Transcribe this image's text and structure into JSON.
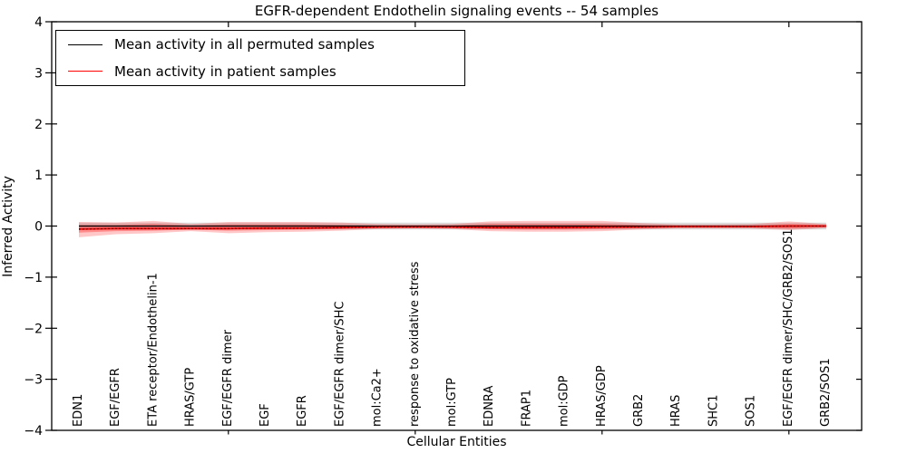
{
  "chart_data": {
    "type": "line",
    "title": "EGFR-dependent Endothelin signaling events -- 54 samples",
    "xlabel": "Cellular Entities",
    "ylabel": "Inferred Activity",
    "ylim": [
      -4,
      4
    ],
    "yticks": [
      -4,
      -3,
      -2,
      -1,
      0,
      1,
      2,
      3,
      4
    ],
    "ytick_labels": [
      "−4",
      "−3",
      "−2",
      "−1",
      "0",
      "1",
      "2",
      "3",
      "4"
    ],
    "grid": false,
    "x_major_tick_indices": [
      4,
      9,
      14,
      19
    ],
    "legend": {
      "position": "upper left",
      "entries": [
        {
          "label": "Mean activity in all permuted samples",
          "color": "#000000"
        },
        {
          "label": "Mean activity in patient samples",
          "color": "#ff0000"
        }
      ]
    },
    "categories": [
      "EDN1",
      "EGF/EGFR",
      "ETA receptor/Endothelin-1",
      "HRAS/GTP",
      "EGF/EGFR dimer",
      "EGF",
      "EGFR",
      "EGF/EGFR dimer/SHC",
      "mol:Ca2+",
      "response to oxidative stress",
      "mol:GTP",
      "EDNRA",
      "FRAP1",
      "mol:GDP",
      "HRAS/GDP",
      "GRB2",
      "HRAS",
      "SHC1",
      "SOS1",
      "EGF/EGFR dimer/SHC/GRB2/SOS1",
      "GRB2/SOS1"
    ],
    "series": [
      {
        "name": "Mean activity in all permuted samples",
        "color": "#000000",
        "style": "solid",
        "width": 1.3,
        "values": [
          0,
          0,
          0,
          0,
          0,
          0,
          0,
          0,
          0,
          0,
          0,
          0,
          0,
          0,
          0,
          0,
          0,
          0,
          0,
          0,
          0
        ]
      },
      {
        "name": "Mean activity in patient samples",
        "color": "#ff0000",
        "style": "solid",
        "width": 1.8,
        "values": [
          -0.06,
          -0.05,
          -0.05,
          -0.05,
          -0.05,
          -0.04,
          -0.04,
          -0.03,
          -0.02,
          -0.02,
          -0.02,
          -0.03,
          -0.03,
          -0.03,
          -0.02,
          -0.02,
          -0.01,
          -0.01,
          -0.01,
          0.0,
          0.0
        ]
      },
      {
        "name": "patient mean dotted overlay",
        "color": "#000000",
        "style": "dotted",
        "width": 1.1,
        "values": [
          -0.06,
          -0.05,
          -0.05,
          -0.05,
          -0.05,
          -0.04,
          -0.04,
          -0.03,
          -0.02,
          -0.02,
          -0.02,
          -0.03,
          -0.03,
          -0.03,
          -0.02,
          -0.02,
          -0.01,
          -0.01,
          -0.01,
          0.0,
          0.0
        ]
      }
    ],
    "bands": [
      {
        "name": "permuted samples spread",
        "color": "#a8a8a8",
        "opacity": 0.4,
        "upper": [
          0.065,
          0.065,
          0.065,
          0.065,
          0.065,
          0.065,
          0.065,
          0.065,
          0.065,
          0.065,
          0.065,
          0.065,
          0.065,
          0.065,
          0.065,
          0.065,
          0.065,
          0.065,
          0.065,
          0.065,
          0.065
        ],
        "lower": [
          -0.065,
          -0.065,
          -0.065,
          -0.065,
          -0.065,
          -0.065,
          -0.065,
          -0.065,
          -0.065,
          -0.065,
          -0.065,
          -0.065,
          -0.065,
          -0.065,
          -0.065,
          -0.065,
          -0.065,
          -0.065,
          -0.065,
          -0.065,
          -0.065
        ]
      },
      {
        "name": "patient samples outer spread",
        "color": "#ff0000",
        "opacity": 0.22,
        "upper": [
          0.08,
          0.07,
          0.1,
          0.04,
          0.08,
          0.08,
          0.08,
          0.07,
          0.04,
          0.03,
          0.04,
          0.09,
          0.1,
          0.1,
          0.1,
          0.06,
          0.03,
          0.03,
          0.04,
          0.09,
          0.04
        ],
        "lower": [
          -0.22,
          -0.16,
          -0.14,
          -0.1,
          -0.14,
          -0.12,
          -0.11,
          -0.09,
          -0.06,
          -0.05,
          -0.06,
          -0.1,
          -0.11,
          -0.11,
          -0.1,
          -0.07,
          -0.05,
          -0.05,
          -0.05,
          -0.08,
          -0.04
        ]
      },
      {
        "name": "patient samples inner spread",
        "color": "#ff0000",
        "opacity": 0.3,
        "upper": [
          0.02,
          0.02,
          0.04,
          0.01,
          0.03,
          0.03,
          0.03,
          0.02,
          0.01,
          0.01,
          0.01,
          0.04,
          0.04,
          0.04,
          0.04,
          0.02,
          0.01,
          0.01,
          0.01,
          0.04,
          0.02
        ],
        "lower": [
          -0.13,
          -0.1,
          -0.09,
          -0.07,
          -0.09,
          -0.08,
          -0.07,
          -0.06,
          -0.04,
          -0.03,
          -0.04,
          -0.06,
          -0.07,
          -0.07,
          -0.06,
          -0.04,
          -0.03,
          -0.03,
          -0.03,
          -0.05,
          -0.02
        ]
      }
    ]
  }
}
